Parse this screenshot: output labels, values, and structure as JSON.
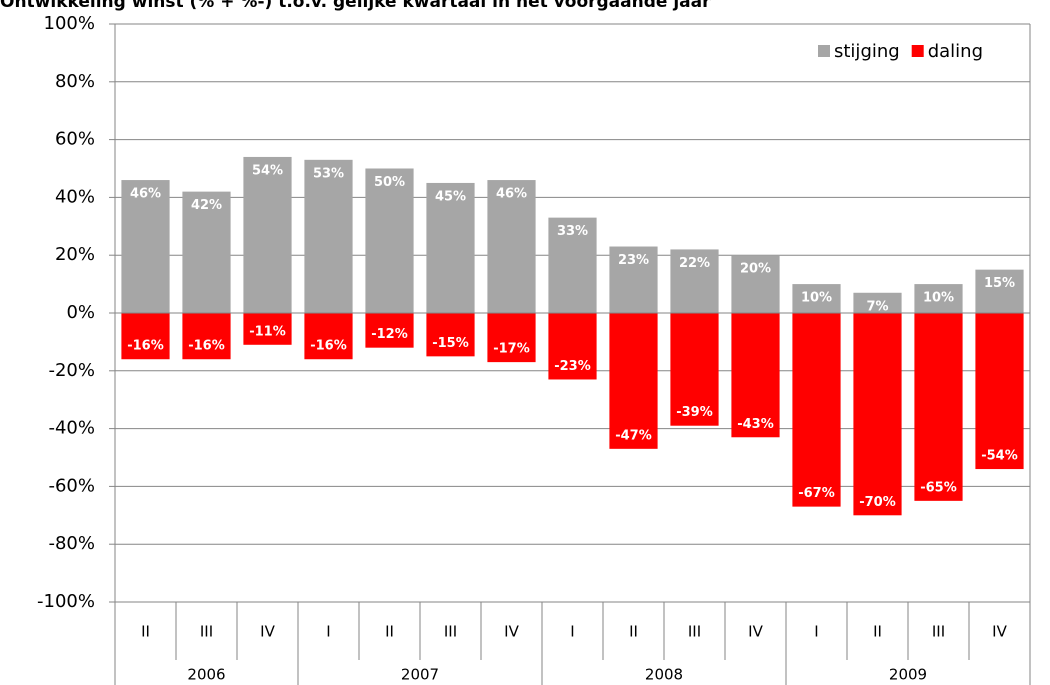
{
  "chart_data": {
    "type": "bar",
    "title": "Ontwikkeling winst (% + %-) t.o.v. gelijke kwartaal in het voorgaande jaar",
    "groups": [
      {
        "name": "2006",
        "categories": [
          "II",
          "III",
          "IV"
        ]
      },
      {
        "name": "2007",
        "categories": [
          "I",
          "II",
          "III",
          "IV"
        ]
      },
      {
        "name": "2008",
        "categories": [
          "I",
          "II",
          "III",
          "IV"
        ]
      },
      {
        "name": "2009",
        "categories": [
          "I",
          "II",
          "III",
          "IV"
        ]
      }
    ],
    "series": [
      {
        "name": "stijging",
        "color": "#a6a6a6",
        "values": [
          46,
          42,
          54,
          53,
          50,
          45,
          46,
          33,
          23,
          22,
          20,
          10,
          7,
          10,
          15
        ],
        "value_labels": [
          "46%",
          "42%",
          "54%",
          "53%",
          "50%",
          "45%",
          "46%",
          "33%",
          "23%",
          "22%",
          "20%",
          "10%",
          "7%",
          "10%",
          "15%"
        ]
      },
      {
        "name": "daling",
        "color": "#ff0000",
        "values": [
          -16,
          -16,
          -11,
          -16,
          -12,
          -15,
          -17,
          -23,
          -47,
          -39,
          -43,
          -67,
          -70,
          -65,
          -54
        ],
        "value_labels": [
          "-16%",
          "-16%",
          "-11%",
          "-16%",
          "-12%",
          "-15%",
          "-17%",
          "-23%",
          "-47%",
          "-39%",
          "-43%",
          "-67%",
          "-70%",
          "-65%",
          "-54%"
        ]
      }
    ],
    "ylim": [
      -100,
      100
    ],
    "yticks": [
      {
        "value": -100,
        "label": "-100%"
      },
      {
        "value": -80,
        "label": "-80%"
      },
      {
        "value": -60,
        "label": "-60%"
      },
      {
        "value": -40,
        "label": "-40%"
      },
      {
        "value": -20,
        "label": "-20%"
      },
      {
        "value": 0,
        "label": "0%"
      },
      {
        "value": 20,
        "label": "20%"
      },
      {
        "value": 40,
        "label": "40%"
      },
      {
        "value": 60,
        "label": "60%"
      },
      {
        "value": 80,
        "label": "80%"
      },
      {
        "value": 100,
        "label": "100%"
      }
    ],
    "grid": true,
    "legend": "top-right"
  }
}
